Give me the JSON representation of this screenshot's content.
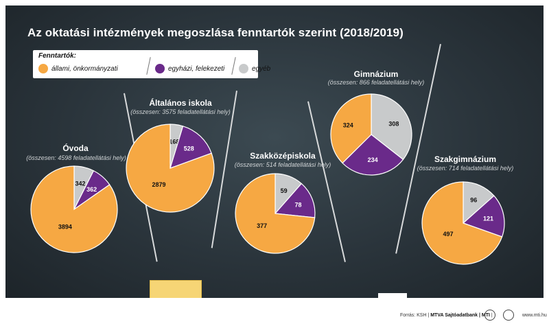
{
  "title": "Az oktatási intézmények megoszlása fenntartók szerint (2018/2019)",
  "legend": {
    "heading": "Fenntartók:",
    "items": [
      {
        "label": "állami, önkormányzati",
        "color": "#f6a843"
      },
      {
        "label": "egyházi, felekezeti",
        "color": "#6a2a8a"
      },
      {
        "label": "egyéb",
        "color": "#c8cacb"
      }
    ]
  },
  "chart_data": [
    {
      "type": "pie",
      "title": "Óvoda",
      "subtitle": "(összesen: 4598 feladatellátási hely)",
      "labels": [
        "állami, önkormányzati",
        "egyházi, felekezeti",
        "egyéb"
      ],
      "values": [
        3894,
        362,
        342
      ]
    },
    {
      "type": "pie",
      "title": "Általános iskola",
      "subtitle": "(összesen: 3575 feladatellátási hely)",
      "labels": [
        "állami, önkormányzati",
        "egyházi, felekezeti",
        "egyéb"
      ],
      "values": [
        2879,
        528,
        168
      ]
    },
    {
      "type": "pie",
      "title": "Szakközépiskola",
      "subtitle": "(összesen: 514 feladatellátási hely)",
      "labels": [
        "állami, önkormányzati",
        "egyházi, felekezeti",
        "egyéb"
      ],
      "values": [
        377,
        78,
        59
      ]
    },
    {
      "type": "pie",
      "title": "Gimnázium",
      "subtitle": "(összesen: 866 feladatellátási hely)",
      "labels": [
        "állami, önkormányzati",
        "egyházi, felekezeti",
        "egyéb"
      ],
      "values": [
        324,
        234,
        308
      ]
    },
    {
      "type": "pie",
      "title": "Szakgimnázium",
      "subtitle": "(összesen: 714 feladatellátási hely)",
      "labels": [
        "állami, önkormányzati",
        "egyházi, felekezeti",
        "egyéb"
      ],
      "values": [
        497,
        121,
        96
      ]
    }
  ],
  "footer": {
    "source_prefix": "Forrás: KSH | ",
    "source_brand": "MTVA Sajtóadatbank | MTI",
    "source_suffix": " |",
    "url": "www.mti.hu"
  }
}
